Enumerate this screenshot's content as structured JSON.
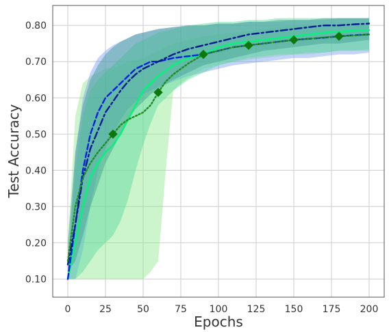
{
  "chart_data": {
    "type": "line",
    "title": "",
    "xlabel": "Epochs",
    "ylabel": "Test Accuracy",
    "xlim": [
      -10,
      210
    ],
    "ylim": [
      0.05,
      0.855
    ],
    "xticks": [
      0,
      25,
      50,
      75,
      100,
      125,
      150,
      175,
      200
    ],
    "yticks": [
      0.1,
      0.2,
      0.3,
      0.4,
      0.5,
      0.6,
      0.7,
      0.8
    ],
    "xtick_labels": [
      "0",
      "25",
      "50",
      "75",
      "100",
      "125",
      "150",
      "175",
      "200"
    ],
    "ytick_labels": [
      "0.10",
      "0.20",
      "0.30",
      "0.40",
      "0.50",
      "0.60",
      "0.70",
      "0.80"
    ],
    "grid": true,
    "series": [
      {
        "color": "#00f57a",
        "style": "solid",
        "x": [
          0,
          5,
          10,
          15,
          20,
          25,
          30,
          35,
          40,
          45,
          50,
          55,
          60,
          70,
          80,
          90,
          100,
          110,
          120,
          130,
          140,
          150,
          160,
          170,
          180,
          190,
          200
        ],
        "y": [
          0.1,
          0.2,
          0.3,
          0.38,
          0.42,
          0.45,
          0.47,
          0.5,
          0.54,
          0.58,
          0.62,
          0.64,
          0.66,
          0.69,
          0.71,
          0.72,
          0.74,
          0.75,
          0.755,
          0.76,
          0.765,
          0.77,
          0.775,
          0.78,
          0.783,
          0.785,
          0.787
        ],
        "upper": [
          0.15,
          0.4,
          0.55,
          0.62,
          0.65,
          0.67,
          0.69,
          0.71,
          0.73,
          0.75,
          0.76,
          0.77,
          0.78,
          0.79,
          0.8,
          0.805,
          0.81,
          0.81,
          0.815,
          0.815,
          0.82,
          0.82,
          0.82,
          0.82,
          0.82,
          0.82,
          0.82
        ],
        "lower": [
          0.1,
          0.1,
          0.12,
          0.15,
          0.18,
          0.2,
          0.22,
          0.26,
          0.32,
          0.4,
          0.47,
          0.53,
          0.58,
          0.62,
          0.65,
          0.67,
          0.69,
          0.7,
          0.71,
          0.715,
          0.72,
          0.72,
          0.725,
          0.725,
          0.73,
          0.73,
          0.73
        ],
        "band_color": "#57d99b"
      },
      {
        "color": "#0022dd",
        "style": "dashed",
        "x": [
          0,
          5,
          10,
          15,
          20,
          25,
          30,
          35,
          40,
          45,
          50,
          55,
          60,
          70,
          80,
          90,
          100,
          110,
          120,
          130,
          140,
          150,
          160,
          170,
          180,
          190,
          200
        ],
        "y": [
          0.1,
          0.25,
          0.4,
          0.5,
          0.56,
          0.6,
          0.62,
          0.64,
          0.66,
          0.68,
          0.69,
          0.7,
          0.7,
          0.71,
          0.715,
          0.72,
          0.73,
          0.74,
          0.745,
          0.75,
          0.755,
          0.76,
          0.763,
          0.766,
          0.77,
          0.773,
          0.775
        ],
        "upper": [
          0.12,
          0.45,
          0.6,
          0.67,
          0.71,
          0.73,
          0.745,
          0.755,
          0.765,
          0.775,
          0.78,
          0.785,
          0.79,
          0.795,
          0.8,
          0.8,
          0.805,
          0.805,
          0.81,
          0.81,
          0.81,
          0.815,
          0.815,
          0.815,
          0.82,
          0.82,
          0.82
        ],
        "lower": [
          0.1,
          0.1,
          0.18,
          0.3,
          0.4,
          0.46,
          0.5,
          0.54,
          0.57,
          0.59,
          0.61,
          0.62,
          0.63,
          0.645,
          0.66,
          0.67,
          0.68,
          0.69,
          0.695,
          0.7,
          0.705,
          0.71,
          0.71,
          0.715,
          0.72,
          0.72,
          0.725
        ],
        "band_color": "#7d9ff2"
      },
      {
        "color": "#001a8f",
        "style": "dashdot",
        "x": [
          0,
          5,
          10,
          15,
          20,
          25,
          30,
          35,
          40,
          45,
          50,
          55,
          60,
          70,
          80,
          90,
          100,
          110,
          120,
          130,
          140,
          150,
          160,
          170,
          180,
          190,
          200
        ],
        "y": [
          0.14,
          0.25,
          0.38,
          0.46,
          0.51,
          0.56,
          0.59,
          0.62,
          0.645,
          0.665,
          0.68,
          0.69,
          0.7,
          0.72,
          0.735,
          0.745,
          0.755,
          0.765,
          0.775,
          0.78,
          0.785,
          0.79,
          0.795,
          0.8,
          0.8,
          0.803,
          0.805
        ],
        "upper": [
          0.2,
          0.45,
          0.58,
          0.65,
          0.69,
          0.72,
          0.74,
          0.755,
          0.765,
          0.775,
          0.78,
          0.785,
          0.79,
          0.795,
          0.8,
          0.8,
          0.805,
          0.805,
          0.81,
          0.81,
          0.815,
          0.815,
          0.815,
          0.82,
          0.82,
          0.82,
          0.82
        ],
        "lower": [
          0.12,
          0.15,
          0.22,
          0.3,
          0.36,
          0.42,
          0.46,
          0.5,
          0.54,
          0.57,
          0.59,
          0.61,
          0.625,
          0.65,
          0.67,
          0.69,
          0.7,
          0.71,
          0.72,
          0.73,
          0.735,
          0.74,
          0.745,
          0.75,
          0.75,
          0.755,
          0.76
        ],
        "band_color": "#3f9c8e"
      },
      {
        "color": "#1f8a1f",
        "style": "dotted",
        "marker": "diamond",
        "marker_color": "#0a780a",
        "markers_x": [
          30,
          60,
          90,
          120,
          150,
          180
        ],
        "x": [
          0,
          5,
          10,
          15,
          20,
          25,
          30,
          35,
          40,
          45,
          50,
          55,
          60,
          65,
          70,
          75,
          80,
          90,
          100,
          110,
          120,
          130,
          140,
          150,
          160,
          170,
          180,
          190,
          200
        ],
        "y": [
          0.15,
          0.3,
          0.38,
          0.42,
          0.45,
          0.475,
          0.5,
          0.525,
          0.54,
          0.55,
          0.56,
          0.58,
          0.615,
          0.645,
          0.665,
          0.68,
          0.695,
          0.72,
          0.73,
          0.74,
          0.745,
          0.75,
          0.755,
          0.76,
          0.763,
          0.767,
          0.77,
          0.772,
          0.775
        ],
        "upper": [
          0.2,
          0.55,
          0.64,
          0.66,
          0.67,
          0.68,
          0.685,
          0.69,
          0.7,
          0.705,
          0.71,
          0.72,
          0.73,
          0.74,
          0.75,
          0.755,
          0.76,
          0.77,
          0.775,
          0.78,
          0.785,
          0.79,
          0.795,
          0.8,
          0.8,
          0.8,
          0.805,
          0.805,
          0.805
        ],
        "lower": [
          0.1,
          0.1,
          0.1,
          0.1,
          0.1,
          0.1,
          0.1,
          0.1,
          0.1,
          0.1,
          0.1,
          0.12,
          0.15,
          0.4,
          0.62,
          0.64,
          0.655,
          0.68,
          0.69,
          0.7,
          0.705,
          0.71,
          0.715,
          0.72,
          0.72,
          0.725,
          0.73,
          0.73,
          0.735
        ],
        "band_color": "#8ee88e"
      }
    ]
  }
}
